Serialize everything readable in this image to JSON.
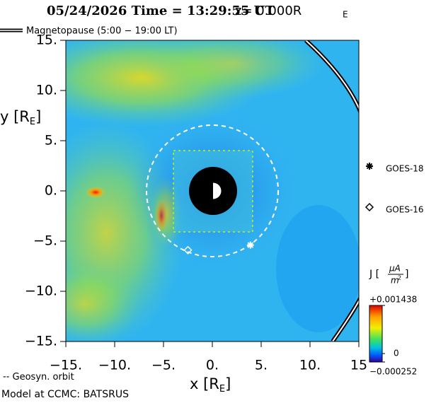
{
  "title": "05/24/2026 Time = 13:29:55 UT",
  "z_label": "z= 0.000R",
  "z_sub": "E",
  "legend": {
    "magnetopause": "Magnetopause (5:00 − 19:00 LT)",
    "geosyn": "Geosyn. orbit"
  },
  "footer": "Model at CCMC: BATSRUS",
  "chart_data": {
    "type": "scatter",
    "x_label": "x [R",
    "x_sub": "E",
    "x_close": "]",
    "y_label": "y [R",
    "y_sub": "E",
    "y_close": "]",
    "xlim": [
      -15,
      15
    ],
    "ylim": [
      -15,
      15
    ],
    "xticks": [
      {
        "value": -15,
        "label": "−15."
      },
      {
        "value": -10,
        "label": "−10."
      },
      {
        "value": -5,
        "label": "−5."
      },
      {
        "value": 0,
        "label": "0."
      },
      {
        "value": 5,
        "label": "5."
      },
      {
        "value": 10,
        "label": "10."
      },
      15
    ],
    "yticks": [
      {
        "value": 15,
        "label": "15."
      },
      {
        "value": 10,
        "label": "10."
      },
      {
        "value": 5,
        "label": "5."
      },
      {
        "value": 0,
        "label": "0."
      },
      {
        "value": -5,
        "label": "−5."
      },
      {
        "value": -10,
        "label": "−10."
      },
      {
        "value": -15,
        "label": "−15."
      }
    ],
    "series": [
      {
        "name": "GOES-18",
        "marker": "asterisk",
        "color": "#ffffff",
        "x": [
          3.9
        ],
        "values": [
          -5.4
        ]
      },
      {
        "name": "GOES-16",
        "marker": "diamond",
        "color": "#ffffff",
        "x": [
          -2.5
        ],
        "values": [
          -5.9
        ]
      }
    ],
    "colorbar": {
      "label": "J [",
      "unit_num": "μA",
      "unit_den": "m",
      "unit_pow": "2",
      "label_close": "]",
      "lim": [
        -0.000252,
        0.001438
      ],
      "ticks": [
        {
          "value": 0.001438,
          "label": "+0.001438"
        },
        0,
        {
          "value": -0.000252,
          "label": "−0.000252"
        }
      ]
    }
  }
}
